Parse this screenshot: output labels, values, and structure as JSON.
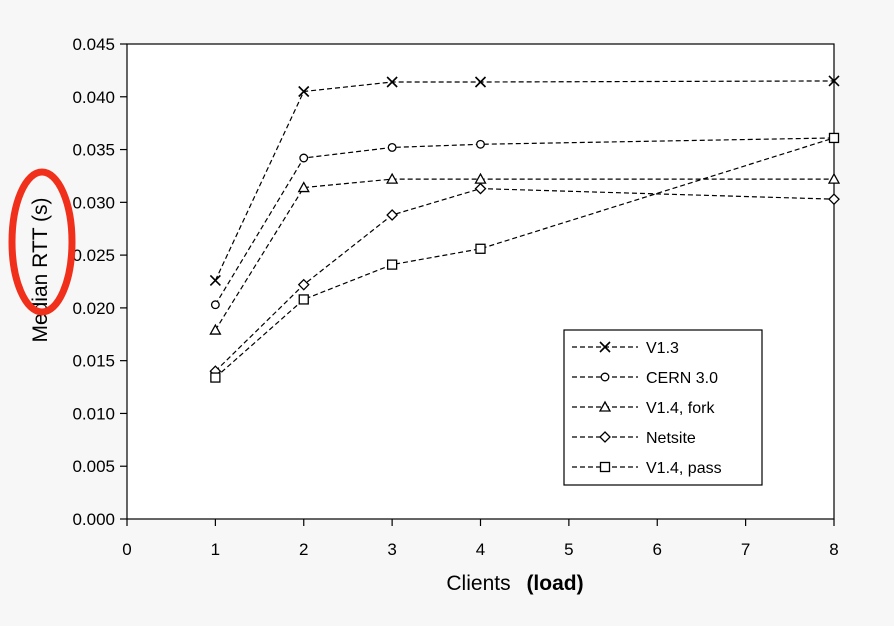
{
  "chart_data": {
    "type": "line",
    "xlabel": "Clients",
    "xlabel_note": "(load)",
    "ylabel": "Median RTT (s)",
    "x_ticks": [
      "0",
      "1",
      "2",
      "3",
      "4",
      "5",
      "6",
      "7",
      "8"
    ],
    "y_ticks": [
      "0.000",
      "0.005",
      "0.010",
      "0.015",
      "0.020",
      "0.025",
      "0.030",
      "0.035",
      "0.040",
      "0.045"
    ],
    "ylim": [
      0,
      0.045
    ],
    "xlim": [
      0,
      8
    ],
    "grid": false,
    "legend_position": "bottom-right",
    "x": [
      1,
      2,
      3,
      4,
      8
    ],
    "series": [
      {
        "name": "V1.3",
        "marker": "x",
        "values": [
          0.0226,
          0.0405,
          0.0414,
          0.0414,
          0.0415
        ]
      },
      {
        "name": "CERN 3.0",
        "marker": "circle",
        "values": [
          0.0203,
          0.0342,
          0.0352,
          0.0355,
          0.0361
        ]
      },
      {
        "name": "V1.4, fork",
        "marker": "triangle",
        "values": [
          0.0179,
          0.0314,
          0.0322,
          0.0322,
          0.0322
        ]
      },
      {
        "name": "Netsite",
        "marker": "diamond",
        "values": [
          0.014,
          0.0222,
          0.0288,
          0.0313,
          0.0303
        ]
      },
      {
        "name": "V1.4, pass",
        "marker": "square",
        "values": [
          0.0134,
          0.0208,
          0.0241,
          0.0256,
          0.0361
        ]
      }
    ]
  },
  "annotation": {
    "type": "circle-highlight",
    "color": "#f0301a"
  }
}
